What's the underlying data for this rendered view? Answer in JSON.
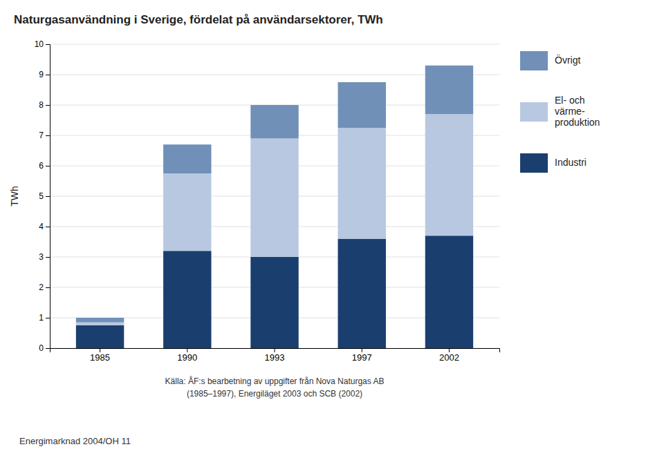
{
  "chart_data": {
    "type": "bar",
    "title": "Naturgasanvändning i Sverige, fördelat på användarsektorer, TWh",
    "ylabel": "TWh",
    "categories": [
      "1985",
      "1990",
      "1993",
      "1997",
      "2002"
    ],
    "series": [
      {
        "name": "Industri",
        "color": "#1a3f6f",
        "values": [
          0.75,
          3.2,
          3.0,
          3.6,
          3.7
        ]
      },
      {
        "name": "El- och\nvärme-\nproduktion",
        "color": "#b8c8e0",
        "values": [
          0.1,
          2.55,
          3.9,
          3.65,
          4.0
        ]
      },
      {
        "name": "Övrigt",
        "color": "#7090b8",
        "values": [
          0.15,
          0.95,
          1.1,
          1.5,
          1.6
        ]
      }
    ],
    "stacked": true,
    "ylim": [
      0,
      10
    ],
    "yticks": [
      0,
      1,
      2,
      3,
      4,
      5,
      6,
      7,
      8,
      9,
      10
    ],
    "grid": true,
    "legend": "right",
    "annotations": [
      "Källa: ÅF:s bearbetning av uppgifter från Nova Naturgas AB",
      "(1985–1997), Energiläget 2003 och SCB (2002)",
      "Energimarknad 2004/OH 11"
    ]
  }
}
